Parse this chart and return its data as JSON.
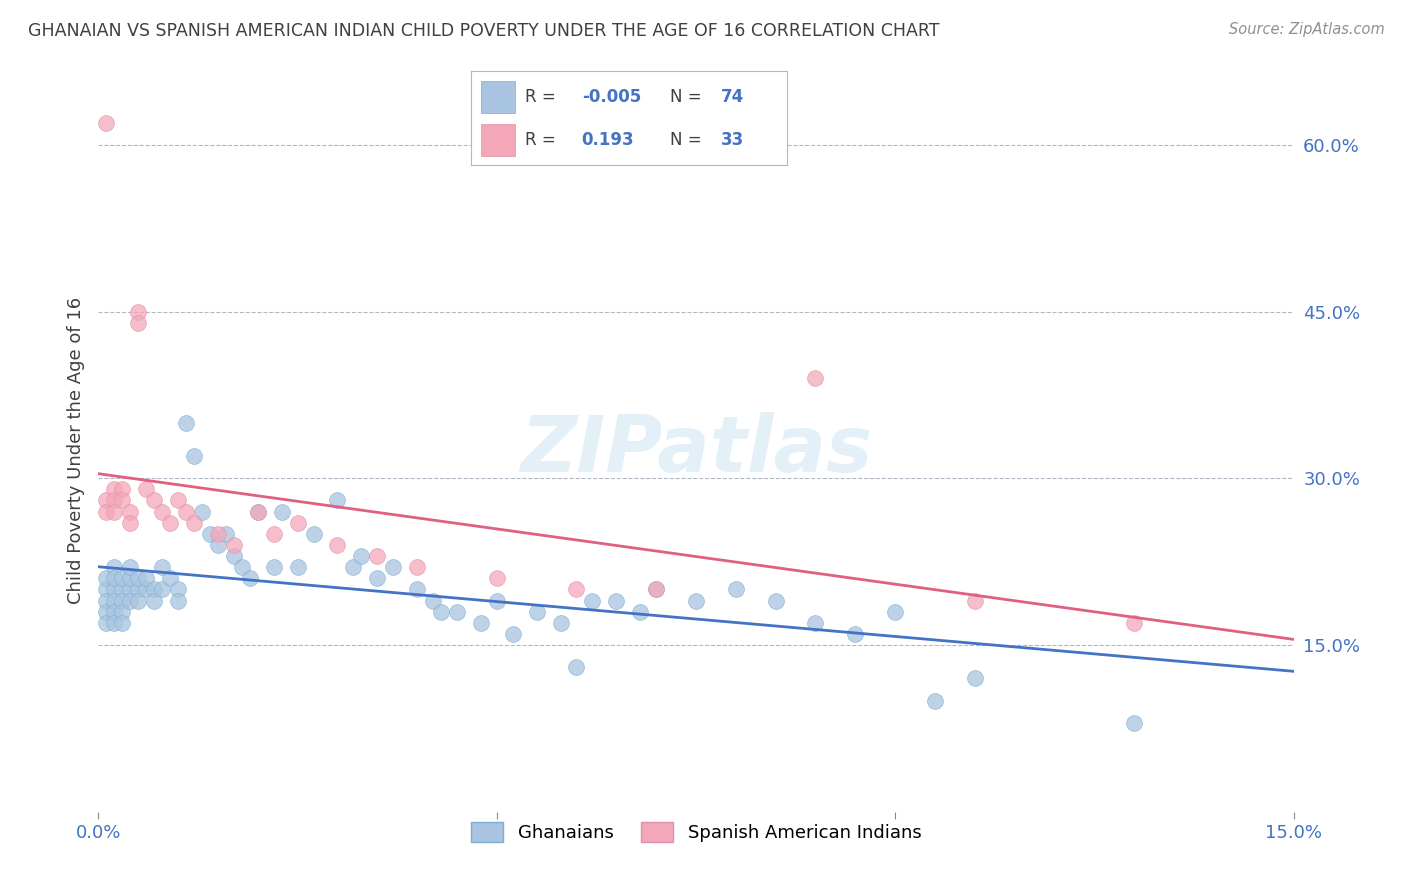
{
  "title": "GHANAIAN VS SPANISH AMERICAN INDIAN CHILD POVERTY UNDER THE AGE OF 16 CORRELATION CHART",
  "source": "Source: ZipAtlas.com",
  "ylabel": "Child Poverty Under the Age of 16",
  "right_yticks": [
    "15.0%",
    "30.0%",
    "45.0%",
    "60.0%"
  ],
  "right_ytick_vals": [
    0.15,
    0.3,
    0.45,
    0.6
  ],
  "watermark": "ZIPatlas",
  "ghanaian_R": "-0.005",
  "ghanaian_N": "74",
  "spanish_R": "0.193",
  "spanish_N": "33",
  "blue_color": "#a8c4e0",
  "pink_color": "#f4a7b9",
  "blue_line_color": "#4472c4",
  "pink_line_color": "#e06080",
  "axis_label_color": "#4472c4",
  "title_color": "#404040",
  "background_color": "#ffffff",
  "grid_color": "#b0b8c8",
  "xmin": 0.0,
  "xmax": 0.15,
  "ymin": 0.0,
  "ymax": 0.65,
  "ghanaian_x": [
    0.001,
    0.001,
    0.001,
    0.001,
    0.001,
    0.002,
    0.002,
    0.002,
    0.002,
    0.002,
    0.002,
    0.003,
    0.003,
    0.003,
    0.003,
    0.003,
    0.004,
    0.004,
    0.004,
    0.004,
    0.005,
    0.005,
    0.005,
    0.006,
    0.006,
    0.007,
    0.007,
    0.008,
    0.008,
    0.009,
    0.01,
    0.01,
    0.011,
    0.012,
    0.013,
    0.014,
    0.015,
    0.016,
    0.017,
    0.018,
    0.019,
    0.02,
    0.022,
    0.023,
    0.025,
    0.027,
    0.03,
    0.032,
    0.033,
    0.035,
    0.037,
    0.04,
    0.042,
    0.043,
    0.045,
    0.048,
    0.05,
    0.052,
    0.055,
    0.058,
    0.06,
    0.062,
    0.065,
    0.068,
    0.07,
    0.075,
    0.08,
    0.085,
    0.09,
    0.095,
    0.1,
    0.105,
    0.11,
    0.13
  ],
  "ghanaian_y": [
    0.2,
    0.19,
    0.21,
    0.18,
    0.17,
    0.22,
    0.2,
    0.19,
    0.18,
    0.21,
    0.17,
    0.2,
    0.21,
    0.19,
    0.18,
    0.17,
    0.2,
    0.21,
    0.19,
    0.22,
    0.2,
    0.21,
    0.19,
    0.2,
    0.21,
    0.2,
    0.19,
    0.22,
    0.2,
    0.21,
    0.2,
    0.19,
    0.35,
    0.32,
    0.27,
    0.25,
    0.24,
    0.25,
    0.23,
    0.22,
    0.21,
    0.27,
    0.22,
    0.27,
    0.22,
    0.25,
    0.28,
    0.22,
    0.23,
    0.21,
    0.22,
    0.2,
    0.19,
    0.18,
    0.18,
    0.17,
    0.19,
    0.16,
    0.18,
    0.17,
    0.13,
    0.19,
    0.19,
    0.18,
    0.2,
    0.19,
    0.2,
    0.19,
    0.17,
    0.16,
    0.18,
    0.1,
    0.12,
    0.08
  ],
  "spanish_x": [
    0.001,
    0.001,
    0.001,
    0.002,
    0.002,
    0.002,
    0.003,
    0.003,
    0.004,
    0.004,
    0.005,
    0.005,
    0.006,
    0.007,
    0.008,
    0.009,
    0.01,
    0.011,
    0.012,
    0.015,
    0.017,
    0.02,
    0.022,
    0.025,
    0.03,
    0.035,
    0.04,
    0.05,
    0.06,
    0.07,
    0.09,
    0.11,
    0.13
  ],
  "spanish_y": [
    0.62,
    0.28,
    0.27,
    0.29,
    0.28,
    0.27,
    0.29,
    0.28,
    0.27,
    0.26,
    0.45,
    0.44,
    0.29,
    0.28,
    0.27,
    0.26,
    0.28,
    0.27,
    0.26,
    0.25,
    0.24,
    0.27,
    0.25,
    0.26,
    0.24,
    0.23,
    0.22,
    0.21,
    0.2,
    0.2,
    0.39,
    0.19,
    0.17
  ]
}
